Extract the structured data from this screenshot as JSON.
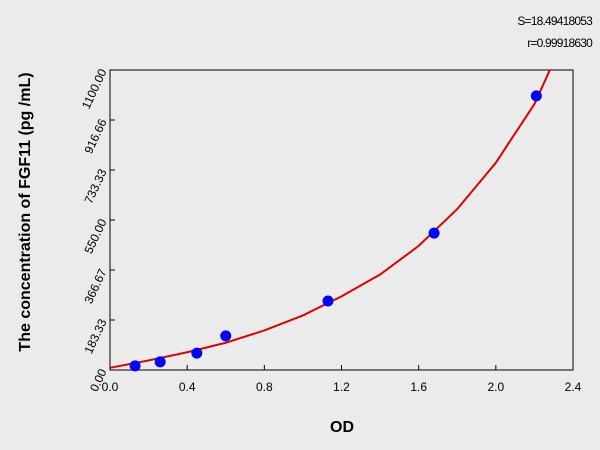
{
  "chart_data": {
    "type": "scatter",
    "annotations": [
      "S=18.49418053",
      "r=0.99918630"
    ],
    "x_label": "OD",
    "y_label": "The concentration of FGF11 (pg /mL)",
    "xlim": [
      0,
      2.4
    ],
    "xticks": [
      {
        "value": 0,
        "label": "0.0"
      },
      0.4,
      0.8,
      1.2,
      1.6,
      {
        "value": 2,
        "label": "2.0"
      },
      2.4
    ],
    "ylim": [
      0,
      1100
    ],
    "yticks": [
      {
        "value": 0,
        "label": "0.00"
      },
      183.33,
      366.67,
      {
        "value": 550,
        "label": "550.00"
      },
      733.33,
      916.66,
      {
        "value": 1100,
        "label": "1100.00"
      }
    ],
    "series": [
      {
        "mode": "markers",
        "color": "#0000ff",
        "x": [
          0.13,
          0.26,
          0.45,
          0.6,
          1.13,
          1.68,
          2.21
        ],
        "values": [
          15,
          30,
          62,
          125,
          253,
          502,
          1005
        ]
      },
      {
        "mode": "line",
        "color": "#e00000",
        "x": [
          0,
          0.2,
          0.4,
          0.6,
          0.8,
          1.0,
          1.2,
          1.4,
          1.6,
          1.8,
          2.0,
          2.2,
          2.28
        ],
        "values": [
          8,
          35,
          65,
          100,
          145,
          200,
          270,
          350,
          455,
          590,
          760,
          975,
          1100
        ]
      }
    ]
  }
}
